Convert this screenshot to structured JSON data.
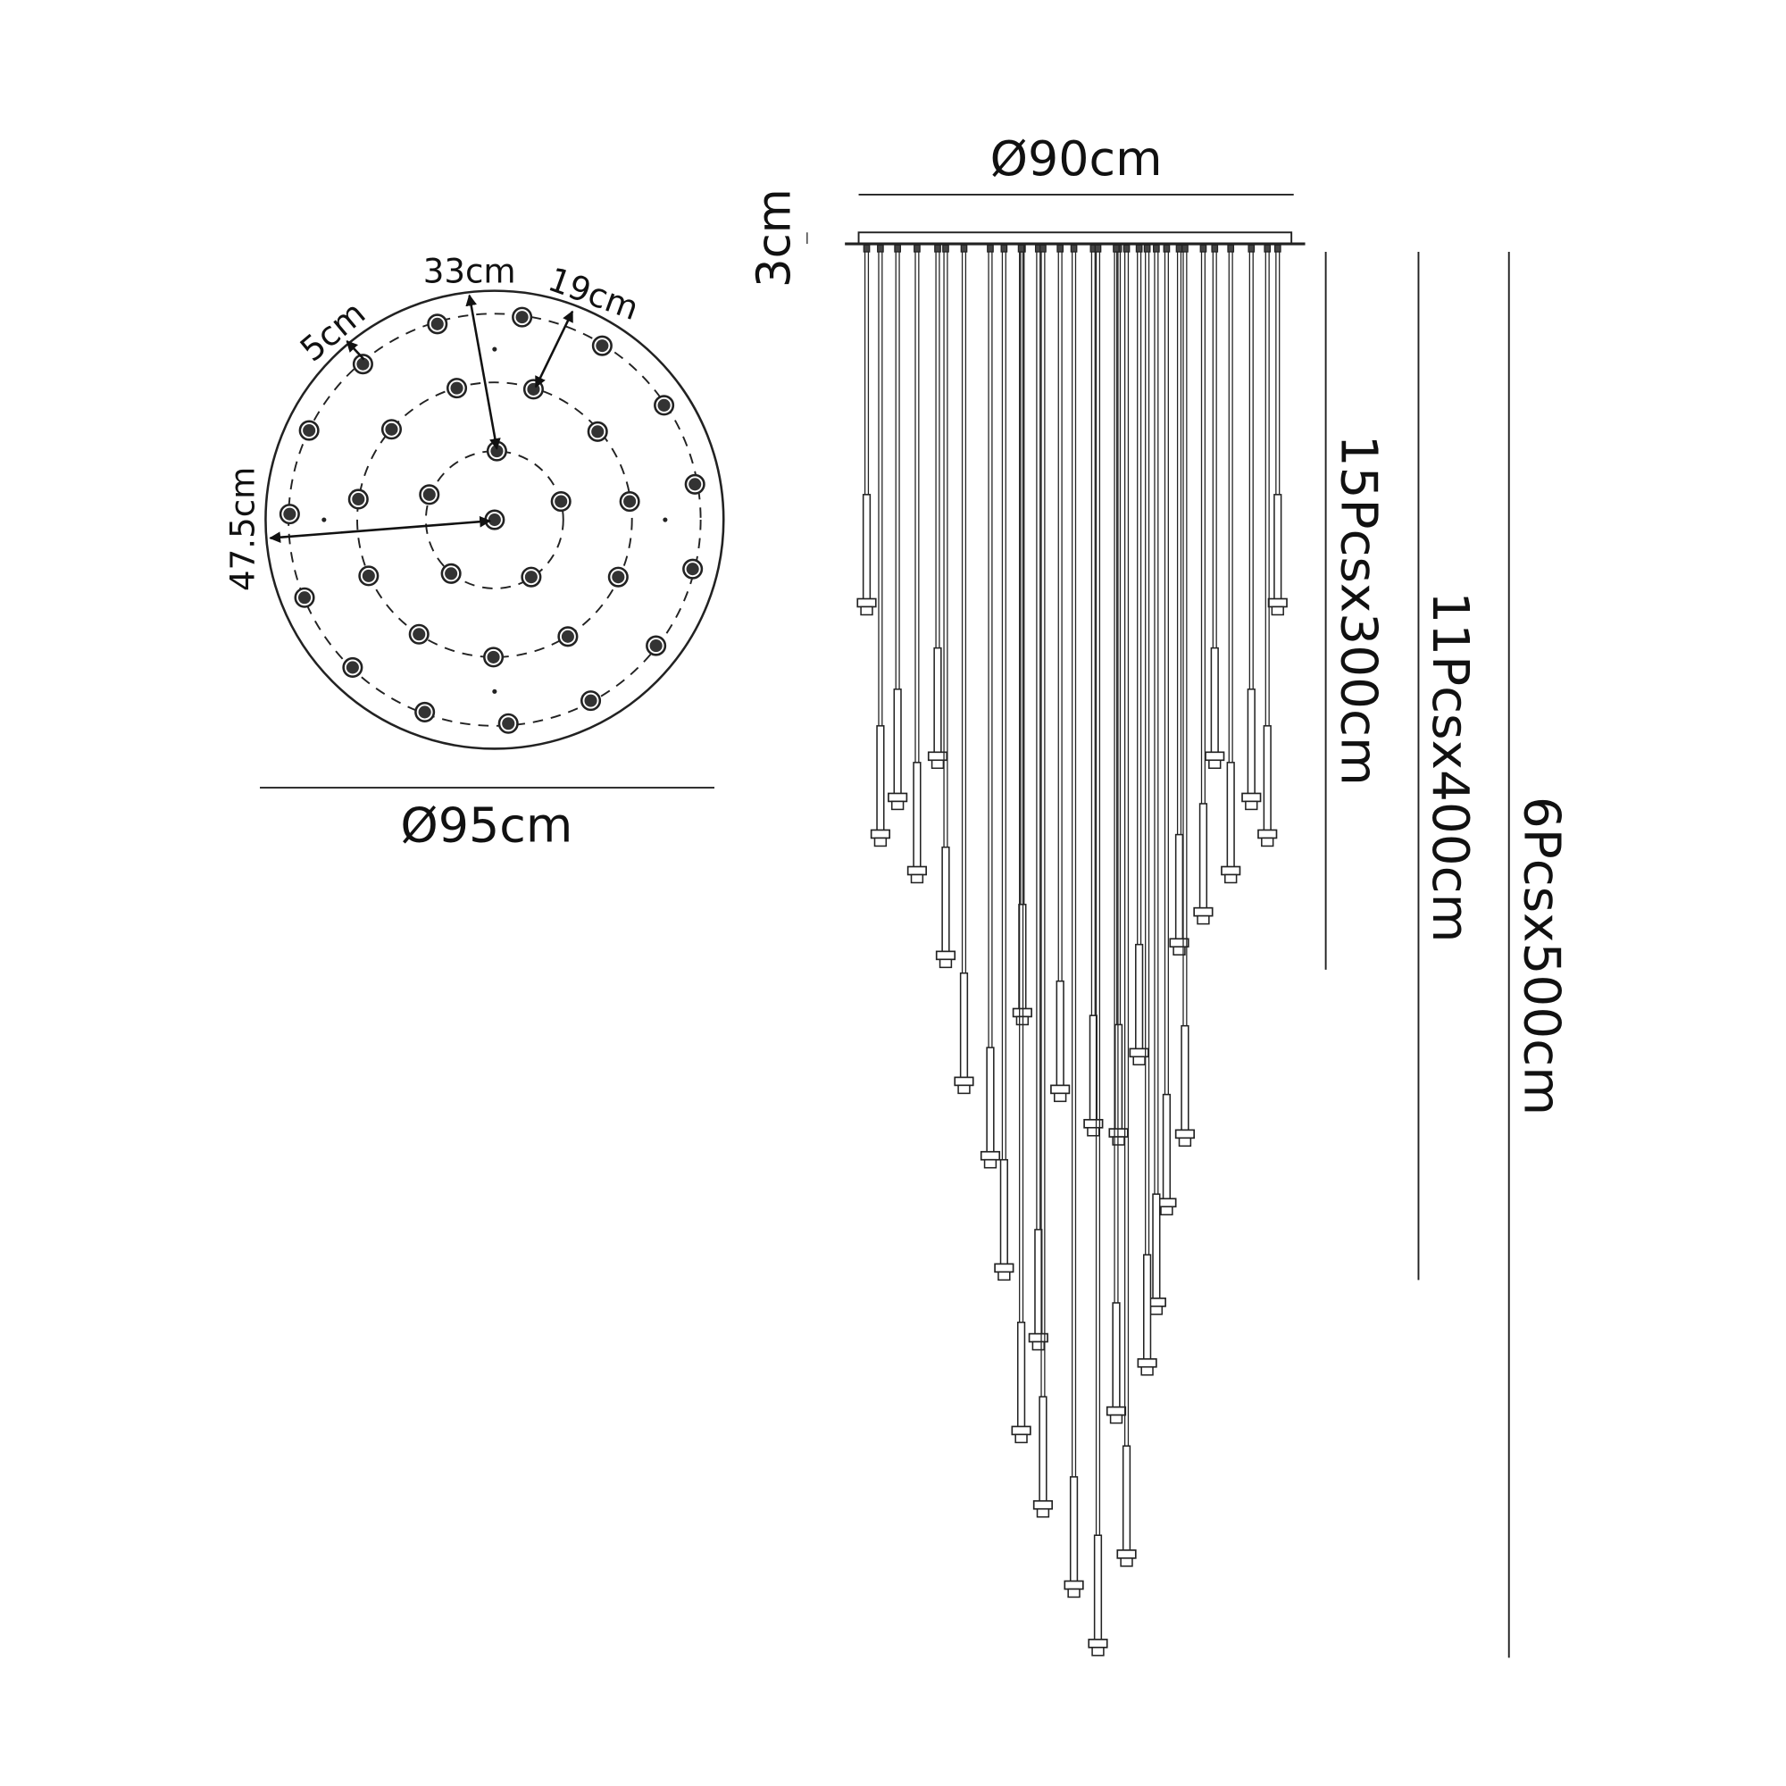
{
  "top_view": {
    "diameter_label": "Ø95cm",
    "radius_label": "47.5cm",
    "ring_spacing_label": "19cm",
    "inner_radius_label": "33cm",
    "edge_offset_label": "5cm",
    "ring_counts": [
      1,
      5,
      11,
      15
    ]
  },
  "side_view": {
    "canopy_diameter_label": "Ø90cm",
    "canopy_height_label": "3cm",
    "drops": [
      {
        "label": "15Pcsx300cm",
        "count": 15,
        "length_cm": 300
      },
      {
        "label": "11Pcsx400cm",
        "count": 11,
        "length_cm": 400
      },
      {
        "label": "6Pcsx500cm",
        "count": 6,
        "length_cm": 500
      }
    ]
  },
  "colors": {
    "line": "#222222",
    "background": "#ffffff"
  }
}
